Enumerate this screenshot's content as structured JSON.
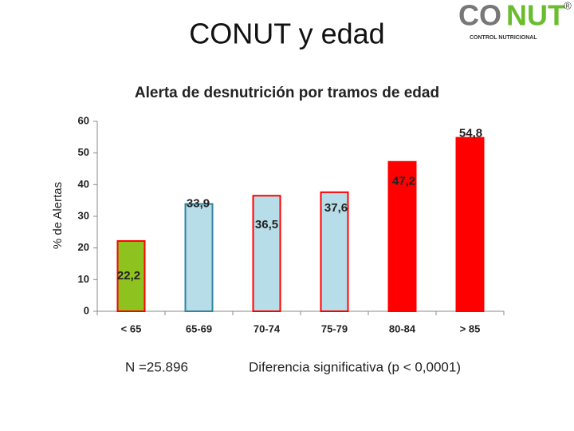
{
  "slide_title": "CONUT y edad",
  "logo": {
    "brand_a": "CO",
    "brand_b": "NUT",
    "mark": "®",
    "tagline": "CONTROL NUTRICIONAL"
  },
  "footnotes": [
    "N =25.896",
    "Diferencia significativa  (p < 0,0001)"
  ],
  "chart_data": {
    "type": "bar",
    "title": "Alerta de desnutrición por tramos de edad",
    "ylabel": "% de Alertas",
    "categories": [
      "< 65",
      "65-69",
      "70-74",
      "75-79",
      "80-84",
      "> 85"
    ],
    "values": [
      22.2,
      33.9,
      36.5,
      37.6,
      47.2,
      54.8
    ],
    "value_labels": [
      "22,2",
      "33,9",
      "36,5",
      "37,6",
      "47,2",
      "54,8"
    ],
    "colors": [
      "#8dc21f",
      "#b7dde8",
      "#b7dde8",
      "#b7dde8",
      "#ff0000",
      "#ff0000"
    ],
    "edge_colors": [
      "#ff0000",
      "#31859c",
      "#ff0000",
      "#ff0000",
      "#ff0000",
      "#ff0000"
    ],
    "ylim": [
      0,
      60
    ],
    "yticks": [
      0,
      10,
      20,
      30,
      40,
      50,
      60
    ],
    "grid": false
  }
}
